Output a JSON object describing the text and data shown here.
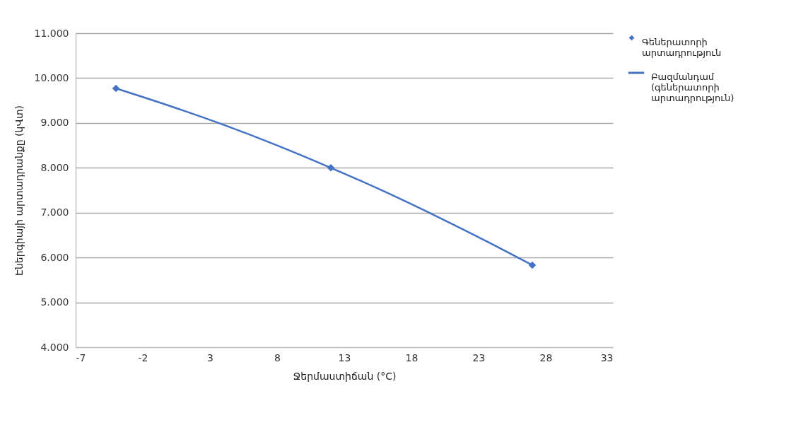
{
  "chart_data": {
    "type": "scatter",
    "xlabel": "Ջերմաստիճան (°C)",
    "ylabel": "Էներգիայի արտադրանքը (կՎտ)",
    "series": [
      {
        "name": "Գեներատորի արտադրություն",
        "marker": "diamond",
        "color": "#4472c4",
        "x": [
          -4,
          12,
          27
        ],
        "values": [
          9770,
          8000,
          5830
        ]
      },
      {
        "name": "Բազմանդամ (գեներատորի արտադրություն)",
        "type": "line",
        "color": "#4472c4",
        "x": [
          -4,
          0,
          4,
          8,
          12,
          16,
          20,
          24,
          27
        ],
        "values": [
          9770,
          9380,
          8960,
          8500,
          8000,
          7470,
          6900,
          6300,
          5830
        ]
      }
    ],
    "xlim": [
      -7,
      33
    ],
    "xticks": [
      -7,
      -2,
      3,
      8,
      13,
      18,
      23,
      28,
      33
    ],
    "ylim": [
      4000,
      11000
    ],
    "yticks": [
      {
        "value": 4000,
        "label": "4.000"
      },
      {
        "value": 5000,
        "label": "5.000"
      },
      {
        "value": 6000,
        "label": "6.000"
      },
      {
        "value": 7000,
        "label": "7.000"
      },
      {
        "value": 8000,
        "label": "8.000"
      },
      {
        "value": 9000,
        "label": "9.000"
      },
      {
        "value": 10000,
        "label": "10.000"
      },
      {
        "value": 11000,
        "label": "11.000"
      }
    ],
    "grid": "y",
    "legend": "right"
  }
}
